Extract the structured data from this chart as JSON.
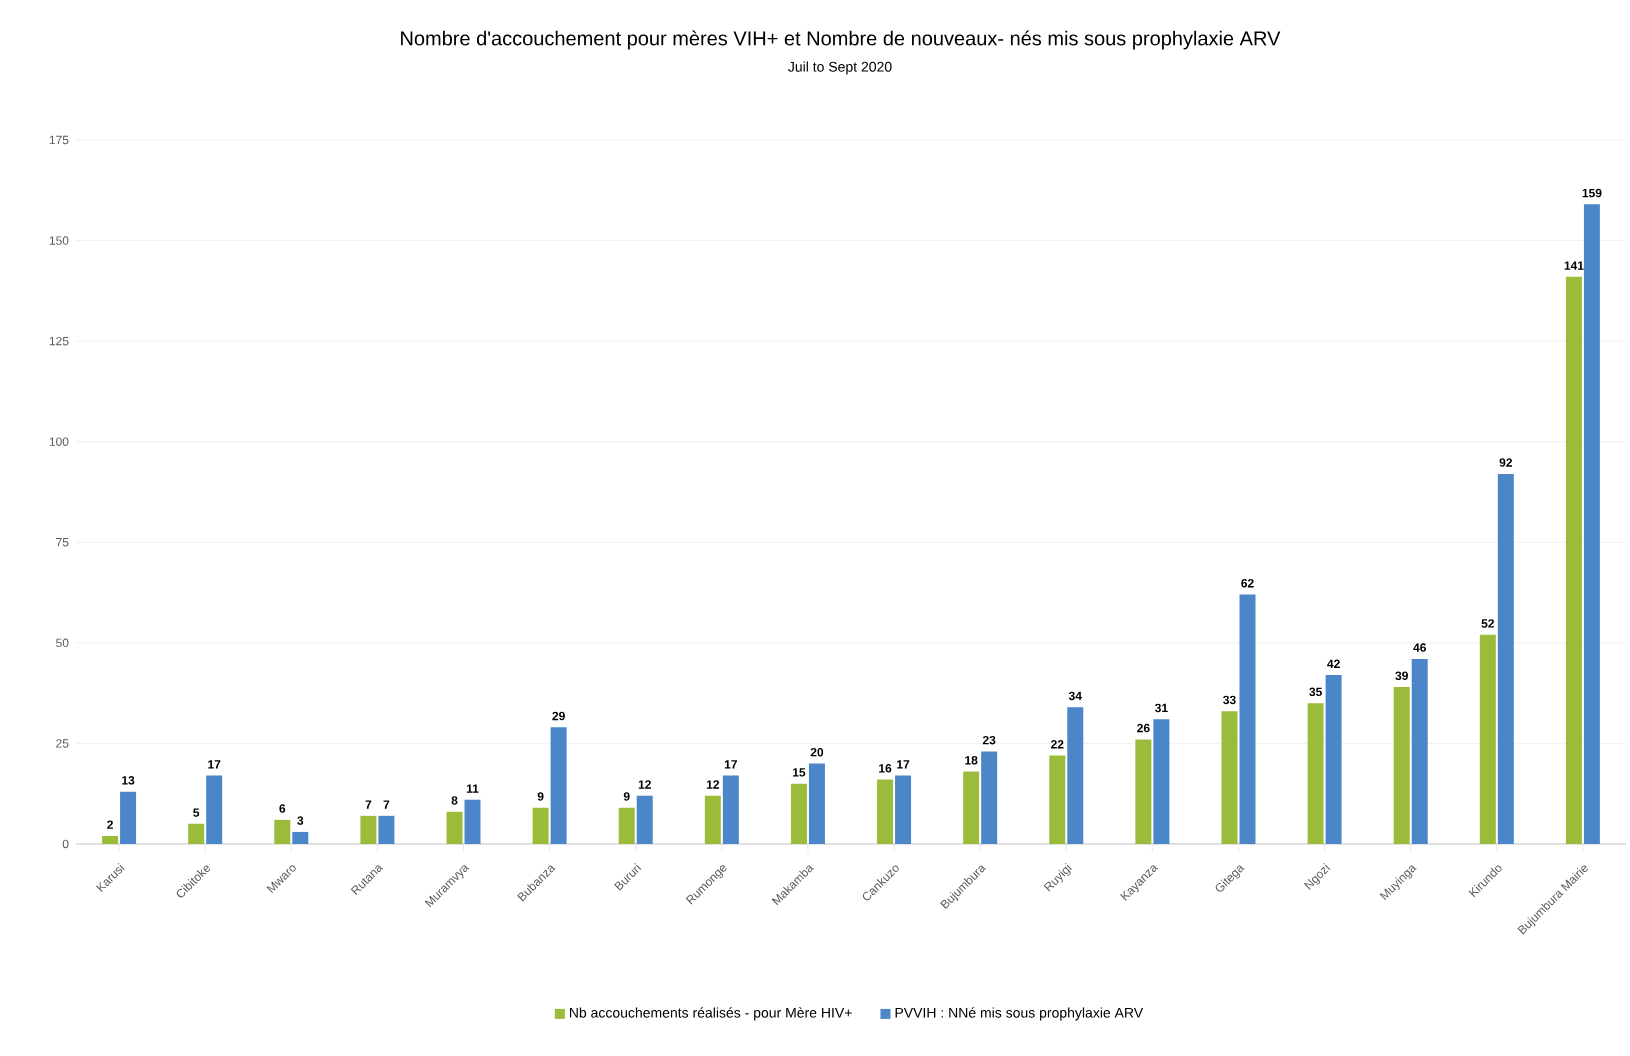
{
  "chart_data": {
    "type": "bar",
    "title": "Nombre d'accouchement pour mères VIH+ et Nombre de nouveaux- nés mis sous prophylaxie ARV",
    "subtitle": "Juil to Sept 2020",
    "categories": [
      "Karusi",
      "Cibitoke",
      "Mwaro",
      "Rutana",
      "Muramvya",
      "Bubanza",
      "Bururi",
      "Rumonge",
      "Makamba",
      "Cankuzo",
      "Bujumbura",
      "Ruyigi",
      "Kayanza",
      "Gitega",
      "Ngozi",
      "Muyinga",
      "Kirundo",
      "Bujumbura Mairie"
    ],
    "series": [
      {
        "name": "Nb accouchements réalisés - pour Mère HIV+",
        "color": "#9bbb3b",
        "values": [
          2,
          5,
          6,
          7,
          8,
          9,
          9,
          12,
          15,
          16,
          18,
          22,
          26,
          33,
          35,
          39,
          52,
          141
        ]
      },
      {
        "name": "PVVIH : NNé mis sous prophylaxie ARV",
        "color": "#4a86c8",
        "values": [
          13,
          17,
          3,
          7,
          11,
          29,
          12,
          17,
          20,
          17,
          23,
          34,
          31,
          62,
          42,
          46,
          92,
          159
        ]
      }
    ],
    "ylim": [
      0,
      175
    ],
    "yticks": [
      0,
      25,
      50,
      75,
      100,
      125,
      150,
      175
    ],
    "grid": "y",
    "legend": "bottom",
    "data_labels": true
  }
}
